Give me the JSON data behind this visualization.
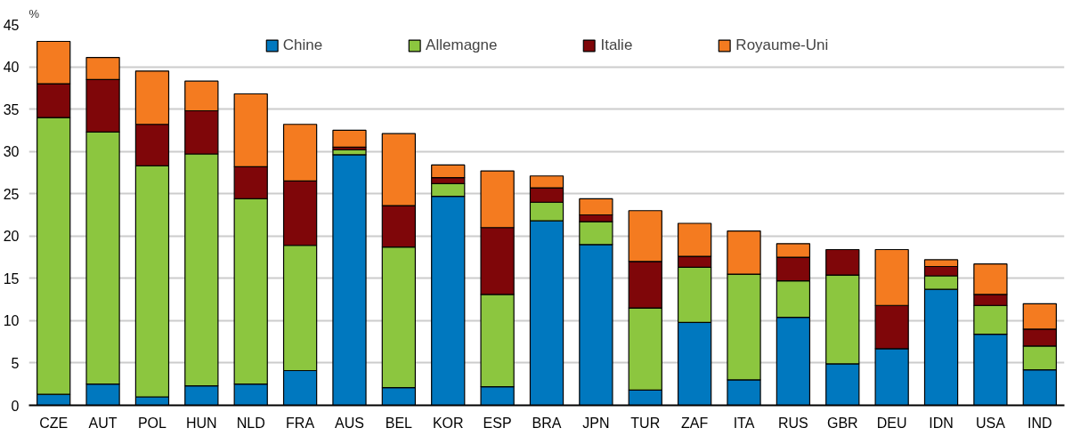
{
  "chart_data": {
    "type": "bar",
    "stacked": true,
    "ylabel": "%",
    "categories": [
      "CZE",
      "AUT",
      "POL",
      "HUN",
      "NLD",
      "FRA",
      "AUS",
      "BEL",
      "KOR",
      "ESP",
      "BRA",
      "JPN",
      "TUR",
      "ZAF",
      "ITA",
      "RUS",
      "GBR",
      "DEU",
      "IDN",
      "USA",
      "IND"
    ],
    "series": [
      {
        "name": "Chine",
        "color": "#0078bf",
        "values": [
          1.3,
          2.5,
          1.0,
          2.3,
          2.5,
          4.1,
          29.6,
          2.1,
          24.7,
          2.2,
          21.8,
          19.0,
          1.8,
          9.8,
          3.0,
          10.4,
          4.9,
          6.7,
          13.7,
          8.4,
          4.2
        ]
      },
      {
        "name": "Allemagne",
        "color": "#8cc63f",
        "values": [
          32.7,
          29.8,
          27.3,
          27.4,
          21.9,
          14.8,
          0.6,
          16.6,
          1.5,
          10.9,
          2.2,
          2.7,
          9.7,
          6.5,
          12.5,
          4.3,
          10.5,
          null,
          1.6,
          3.4,
          2.8
        ]
      },
      {
        "name": "Italie",
        "color": "#7f0609",
        "values": [
          4.0,
          6.2,
          4.9,
          5.1,
          3.8,
          7.6,
          0.3,
          4.9,
          0.7,
          7.9,
          1.7,
          0.8,
          5.5,
          1.3,
          null,
          2.8,
          3.0,
          5.1,
          1.1,
          1.3,
          2.0
        ]
      },
      {
        "name": "Royaume-Uni",
        "color": "#f47b20",
        "values": [
          5.0,
          2.6,
          6.3,
          3.5,
          8.6,
          6.7,
          2.0,
          8.5,
          1.5,
          6.7,
          1.4,
          1.9,
          6.0,
          3.9,
          5.1,
          1.6,
          null,
          6.6,
          0.8,
          3.6,
          3.0
        ]
      }
    ],
    "ylim": [
      0,
      45
    ],
    "yticks": [
      0,
      5,
      10,
      15,
      20,
      25,
      30,
      35,
      40,
      45
    ],
    "grid": "y",
    "legend": "top"
  }
}
